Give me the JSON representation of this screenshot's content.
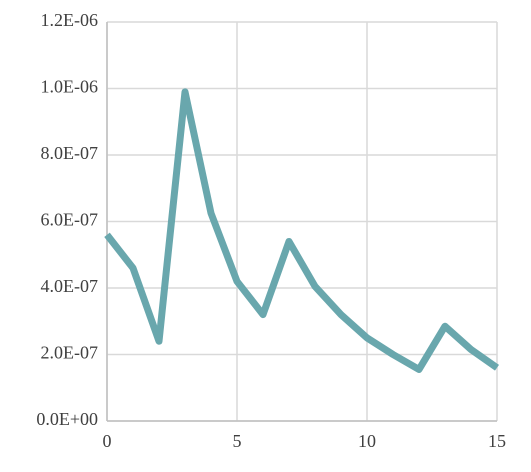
{
  "chart_data": {
    "type": "line",
    "x": [
      0,
      1,
      2,
      3,
      4,
      5,
      6,
      7,
      8,
      9,
      10,
      11,
      12,
      13,
      14,
      15
    ],
    "series": [
      {
        "color": "#69a7ad",
        "values": [
          5.6e-07,
          4.6e-07,
          2.4e-07,
          9.9e-07,
          6.25e-07,
          4.2e-07,
          3.2e-07,
          5.4e-07,
          4.05e-07,
          3.2e-07,
          2.5e-07,
          2e-07,
          1.55e-07,
          2.85e-07,
          2.15e-07,
          1.6e-07
        ]
      }
    ],
    "xlim": [
      0,
      15
    ],
    "xticks": [
      0,
      5,
      10,
      15
    ],
    "ylim": [
      0,
      1.2e-06
    ],
    "yticks": [
      {
        "value": 0,
        "label": "0.0E+00"
      },
      {
        "value": 2e-07,
        "label": "2.0E-07"
      },
      {
        "value": 4e-07,
        "label": "4.0E-07"
      },
      {
        "value": 6e-07,
        "label": "6.0E-07"
      },
      {
        "value": 8e-07,
        "label": "8.0E-07"
      },
      {
        "value": 1e-06,
        "label": "1.0E-06"
      },
      {
        "value": 1.2e-06,
        "label": "1.2E-06"
      }
    ],
    "grid": true
  }
}
